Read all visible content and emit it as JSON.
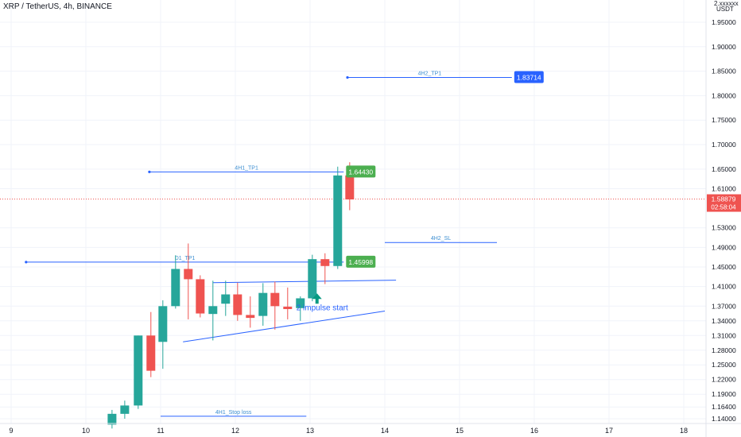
{
  "header": {
    "title": "XRP / TetherUS, 4h, BINANCE"
  },
  "price_axis": {
    "scale_label": "2.xxxxxx",
    "currency": "USDT",
    "ticks": [
      "1.95000",
      "1.90000",
      "1.85000",
      "1.80000",
      "1.75000",
      "1.70000",
      "1.65000",
      "1.61000",
      "1.53000",
      "1.49000",
      "1.45000",
      "1.41000",
      "1.37000",
      "1.34000",
      "1.31000",
      "1.28000",
      "1.25000",
      "1.22000",
      "1.19000",
      "1.16400",
      "1.14000"
    ],
    "current_price": "1.58879",
    "countdown": "02:58:04"
  },
  "time_axis": {
    "labels": [
      "9",
      "10",
      "11",
      "12",
      "13",
      "14",
      "15",
      "16",
      "17",
      "18"
    ]
  },
  "colors": {
    "up": "#26a69a",
    "down": "#ef5350",
    "level": "#2962ff",
    "label_text": "#3d8fd1",
    "tp_green": "#4caf50",
    "tp_blue": "#2962ff",
    "grid": "#f0f3fa",
    "arrow": "#089981"
  },
  "chart_data": {
    "type": "candlestick",
    "title": "XRP / TetherUS, 4h, BINANCE",
    "x_axis": {
      "labels": [
        "9",
        "10",
        "11",
        "12",
        "13",
        "14",
        "15",
        "16",
        "17",
        "18"
      ]
    },
    "y_axis": {
      "unit": "USDT"
    },
    "candles": [
      {
        "t": 10.35,
        "o": 1.128,
        "h": 1.158,
        "l": 1.12,
        "c": 1.15
      },
      {
        "t": 10.52,
        "o": 1.15,
        "h": 1.177,
        "l": 1.14,
        "c": 1.167
      },
      {
        "t": 10.7,
        "o": 1.167,
        "h": 1.31,
        "l": 1.16,
        "c": 1.31
      },
      {
        "t": 10.87,
        "o": 1.31,
        "h": 1.358,
        "l": 1.225,
        "c": 1.238
      },
      {
        "t": 11.03,
        "o": 1.297,
        "h": 1.382,
        "l": 1.242,
        "c": 1.37
      },
      {
        "t": 11.2,
        "o": 1.37,
        "h": 1.474,
        "l": 1.365,
        "c": 1.446
      },
      {
        "t": 11.37,
        "o": 1.446,
        "h": 1.498,
        "l": 1.343,
        "c": 1.425
      },
      {
        "t": 11.53,
        "o": 1.425,
        "h": 1.433,
        "l": 1.347,
        "c": 1.355
      },
      {
        "t": 11.7,
        "o": 1.354,
        "h": 1.422,
        "l": 1.3,
        "c": 1.37
      },
      {
        "t": 11.87,
        "o": 1.375,
        "h": 1.422,
        "l": 1.35,
        "c": 1.394
      },
      {
        "t": 12.03,
        "o": 1.394,
        "h": 1.418,
        "l": 1.34,
        "c": 1.352
      },
      {
        "t": 12.2,
        "o": 1.352,
        "h": 1.39,
        "l": 1.326,
        "c": 1.346
      },
      {
        "t": 12.37,
        "o": 1.35,
        "h": 1.417,
        "l": 1.33,
        "c": 1.397
      },
      {
        "t": 12.53,
        "o": 1.397,
        "h": 1.42,
        "l": 1.322,
        "c": 1.37
      },
      {
        "t": 12.7,
        "o": 1.369,
        "h": 1.408,
        "l": 1.343,
        "c": 1.364
      },
      {
        "t": 12.87,
        "o": 1.366,
        "h": 1.39,
        "l": 1.34,
        "c": 1.386
      },
      {
        "t": 13.03,
        "o": 1.386,
        "h": 1.475,
        "l": 1.38,
        "c": 1.466
      },
      {
        "t": 13.2,
        "o": 1.466,
        "h": 1.478,
        "l": 1.415,
        "c": 1.452
      },
      {
        "t": 13.37,
        "o": 1.452,
        "h": 1.655,
        "l": 1.446,
        "c": 1.637
      },
      {
        "t": 13.53,
        "o": 1.637,
        "h": 1.664,
        "l": 1.566,
        "c": 1.588
      }
    ],
    "levels": [
      {
        "name": "4H2_TP1",
        "price": 1.83714,
        "t_start": 13.5,
        "t_end": 15.7,
        "label": "1.83714",
        "tag_color": "#2962ff"
      },
      {
        "name": "4H1_TP1",
        "price": 1.6443,
        "t_start": 10.85,
        "t_end": 13.45,
        "label": "1.64430",
        "tag_color": "#4caf50"
      },
      {
        "name": "D1_TP1",
        "price": 1.45998,
        "t_start": 9.2,
        "t_end": 13.45,
        "label": "1.45998",
        "tag_color": "#4caf50"
      },
      {
        "name": "4H2_SL",
        "price": 1.5,
        "t_start": 14.0,
        "t_end": 15.5
      },
      {
        "name": "4H1_Stop loss",
        "price": 1.145,
        "t_start": 11.0,
        "t_end": 12.95
      }
    ],
    "annotations": [
      {
        "text": "2 impulse start",
        "t": 12.88,
        "price": 1.37
      }
    ],
    "trendlines": [
      {
        "t1": 11.3,
        "p1": 1.297,
        "t2": 14.0,
        "p2": 1.36
      },
      {
        "t1": 11.7,
        "p1": 1.418,
        "t2": 14.15,
        "p2": 1.423
      }
    ],
    "current_price": 1.58879
  }
}
